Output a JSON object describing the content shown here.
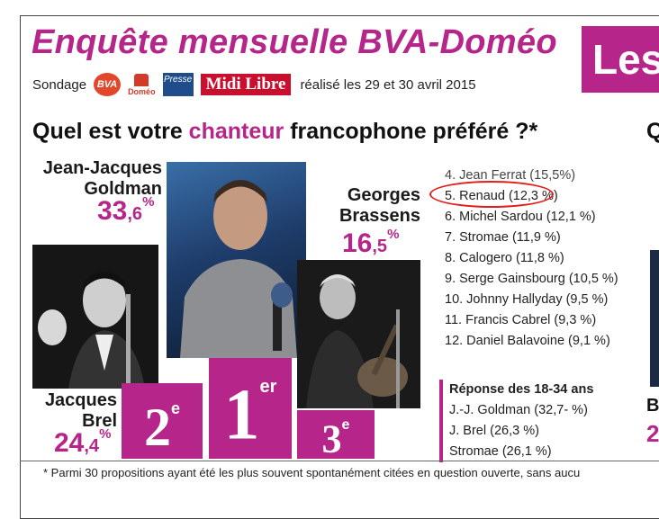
{
  "header": {
    "title": "Enquête mensuelle BVA-Doméo",
    "side_title": "Les",
    "sondage_label": "Sondage",
    "logos": {
      "bva": "BVA",
      "domeo": "Doméo",
      "presse": "Presse",
      "midi_libre": "Midi Libre"
    },
    "date_text": "réalisé les 29 et 30 avril 2015"
  },
  "question": {
    "before": "Quel est votre ",
    "highlight": "chanteur",
    "after": " francophone préféré ?*",
    "next_column_letter": "Q"
  },
  "podium": {
    "first": {
      "name_line1": "Jean-Jacques",
      "name_line2": "Goldman",
      "score_int": "33",
      "score_dec": ",6",
      "pct": "%",
      "rank_num": "1",
      "rank_suffix": "er"
    },
    "second": {
      "name_line1": "Jacques",
      "name_line2": "Brel",
      "score_int": "24",
      "score_dec": ",4",
      "pct": "%",
      "rank_num": "2",
      "rank_suffix": "e"
    },
    "third": {
      "name_line1": "Georges",
      "name_line2": "Brassens",
      "score_int": "16",
      "score_dec": ",5",
      "pct": "%",
      "rank_num": "3",
      "rank_suffix": "e"
    }
  },
  "ranking": [
    "4. Jean Ferrat (15,5%)",
    "5. Renaud (12,3 %)",
    "6. Michel Sardou (12,1 %)",
    "7. Stromae (11,9 %)",
    "8. Calogero (11,8 %)",
    "9. Serge Gainsbourg (10,5 %)",
    "10. Johnny Hallyday (9,5 %)",
    "11. Francis Cabrel (9,3 %)",
    "12. Daniel Balavoine (9,1 %)"
  ],
  "youth": {
    "title": "Réponse des 18-34 ans",
    "items": [
      "J.-J. Goldman (32,7- %)",
      "J. Brel (26,3 %)",
      "Stromae (26,1 %)"
    ]
  },
  "footer": "* Parmi 30 propositions ayant été les plus souvent spontanément citées en question ouverte, sans aucu",
  "edge": {
    "letter_b": "B",
    "digit": "2"
  },
  "colors": {
    "accent": "#b6268a",
    "highlight_circle": "#e31b1b",
    "midi_libre_red": "#c8102e"
  }
}
